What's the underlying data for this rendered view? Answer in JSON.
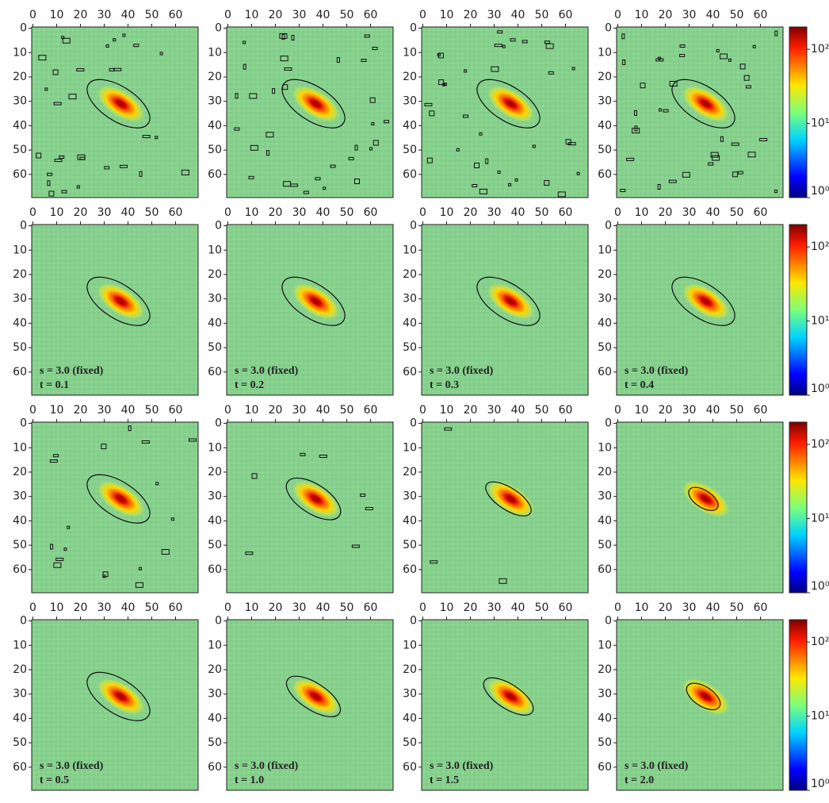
{
  "chart_data": [
    {
      "type": "heatmap",
      "xlim": [
        -0.5,
        69.5
      ],
      "ylim": [
        69.5,
        -0.5
      ],
      "xticks": [
        0,
        10,
        20,
        30,
        40,
        50,
        60
      ],
      "yticks": [
        0,
        10,
        20,
        30,
        40,
        50,
        60
      ]
    },
    {
      "type": "heatmap",
      "xlim": [
        -0.5,
        69.5
      ],
      "ylim": [
        69.5,
        -0.5
      ],
      "xticks": [
        0,
        10,
        20,
        30,
        40,
        50,
        60
      ],
      "yticks": [
        0,
        10,
        20,
        30,
        40,
        50,
        60
      ]
    },
    {
      "type": "heatmap",
      "xlim": [
        -0.5,
        69.5
      ],
      "ylim": [
        69.5,
        -0.5
      ],
      "xticks": [
        0,
        10,
        20,
        30,
        40,
        50,
        60
      ],
      "yticks": [
        0,
        10,
        20,
        30,
        40,
        50,
        60
      ]
    },
    {
      "type": "heatmap",
      "xlim": [
        -0.5,
        69.5
      ],
      "ylim": [
        69.5,
        -0.5
      ],
      "xticks": [
        0,
        10,
        20,
        30,
        40,
        50,
        60
      ],
      "yticks": [
        0,
        10,
        20,
        30,
        40,
        50,
        60
      ],
      "colorbar": {
        "scale": "log",
        "lim": [
          1,
          200
        ],
        "ticks": [
          {
            "value": 1,
            "label": "10⁰"
          },
          {
            "value": 10,
            "label": "10¹"
          },
          {
            "value": 100,
            "label": "10²"
          }
        ]
      }
    },
    {
      "type": "heatmap",
      "xlim": [
        -0.5,
        69.5
      ],
      "ylim": [
        69.5,
        -0.5
      ],
      "xticks": [
        0,
        10,
        20,
        30,
        40,
        50,
        60
      ],
      "yticks": [
        0,
        10,
        20,
        30,
        40,
        50,
        60
      ],
      "annotations": [
        "s = 3.0 (fixed)",
        "t = 0.1"
      ]
    },
    {
      "type": "heatmap",
      "xlim": [
        -0.5,
        69.5
      ],
      "ylim": [
        69.5,
        -0.5
      ],
      "xticks": [
        0,
        10,
        20,
        30,
        40,
        50,
        60
      ],
      "yticks": [
        0,
        10,
        20,
        30,
        40,
        50,
        60
      ],
      "annotations": [
        "s = 3.0 (fixed)",
        "t = 0.2"
      ]
    },
    {
      "type": "heatmap",
      "xlim": [
        -0.5,
        69.5
      ],
      "ylim": [
        69.5,
        -0.5
      ],
      "xticks": [
        0,
        10,
        20,
        30,
        40,
        50,
        60
      ],
      "yticks": [
        0,
        10,
        20,
        30,
        40,
        50,
        60
      ],
      "annotations": [
        "s = 3.0 (fixed)",
        "t = 0.3"
      ]
    },
    {
      "type": "heatmap",
      "xlim": [
        -0.5,
        69.5
      ],
      "ylim": [
        69.5,
        -0.5
      ],
      "xticks": [
        0,
        10,
        20,
        30,
        40,
        50,
        60
      ],
      "yticks": [
        0,
        10,
        20,
        30,
        40,
        50,
        60
      ],
      "annotations": [
        "s = 3.0 (fixed)",
        "t = 0.4"
      ],
      "colorbar": {
        "scale": "log",
        "lim": [
          1,
          200
        ],
        "ticks": [
          {
            "value": 1,
            "label": "10⁰"
          },
          {
            "value": 10,
            "label": "10¹"
          },
          {
            "value": 100,
            "label": "10²"
          }
        ]
      }
    },
    {
      "type": "heatmap",
      "xlim": [
        -0.5,
        69.5
      ],
      "ylim": [
        69.5,
        -0.5
      ],
      "xticks": [
        0,
        10,
        20,
        30,
        40,
        50,
        60
      ],
      "yticks": [
        0,
        10,
        20,
        30,
        40,
        50,
        60
      ]
    },
    {
      "type": "heatmap",
      "xlim": [
        -0.5,
        69.5
      ],
      "ylim": [
        69.5,
        -0.5
      ],
      "xticks": [
        0,
        10,
        20,
        30,
        40,
        50,
        60
      ],
      "yticks": [
        0,
        10,
        20,
        30,
        40,
        50,
        60
      ]
    },
    {
      "type": "heatmap",
      "xlim": [
        -0.5,
        69.5
      ],
      "ylim": [
        69.5,
        -0.5
      ],
      "xticks": [
        0,
        10,
        20,
        30,
        40,
        50,
        60
      ],
      "yticks": [
        0,
        10,
        20,
        30,
        40,
        50,
        60
      ]
    },
    {
      "type": "heatmap",
      "xlim": [
        -0.5,
        69.5
      ],
      "ylim": [
        69.5,
        -0.5
      ],
      "xticks": [
        0,
        10,
        20,
        30,
        40,
        50,
        60
      ],
      "yticks": [
        0,
        10,
        20,
        30,
        40,
        50,
        60
      ],
      "colorbar": {
        "scale": "log",
        "lim": [
          1,
          200
        ],
        "ticks": [
          {
            "value": 1,
            "label": "10⁰"
          },
          {
            "value": 10,
            "label": "10¹"
          },
          {
            "value": 100,
            "label": "10²"
          }
        ]
      }
    },
    {
      "type": "heatmap",
      "xlim": [
        -0.5,
        69.5
      ],
      "ylim": [
        69.5,
        -0.5
      ],
      "xticks": [
        0,
        10,
        20,
        30,
        40,
        50,
        60
      ],
      "yticks": [
        0,
        10,
        20,
        30,
        40,
        50,
        60
      ],
      "annotations": [
        "s = 3.0 (fixed)",
        "t = 0.5"
      ]
    },
    {
      "type": "heatmap",
      "xlim": [
        -0.5,
        69.5
      ],
      "ylim": [
        69.5,
        -0.5
      ],
      "xticks": [
        0,
        10,
        20,
        30,
        40,
        50,
        60
      ],
      "yticks": [
        0,
        10,
        20,
        30,
        40,
        50,
        60
      ],
      "annotations": [
        "s = 3.0 (fixed)",
        "t = 1.0"
      ]
    },
    {
      "type": "heatmap",
      "xlim": [
        -0.5,
        69.5
      ],
      "ylim": [
        69.5,
        -0.5
      ],
      "xticks": [
        0,
        10,
        20,
        30,
        40,
        50,
        60
      ],
      "yticks": [
        0,
        10,
        20,
        30,
        40,
        50,
        60
      ],
      "annotations": [
        "s = 3.0 (fixed)",
        "t = 1.5"
      ]
    },
    {
      "type": "heatmap",
      "xlim": [
        -0.5,
        69.5
      ],
      "ylim": [
        69.5,
        -0.5
      ],
      "xticks": [
        0,
        10,
        20,
        30,
        40,
        50,
        60
      ],
      "yticks": [
        0,
        10,
        20,
        30,
        40,
        50,
        60
      ],
      "annotations": [
        "s = 3.0 (fixed)",
        "t = 2.0"
      ],
      "colorbar": {
        "scale": "log",
        "lim": [
          1,
          200
        ],
        "ticks": [
          {
            "value": 1,
            "label": "10⁰"
          },
          {
            "value": 10,
            "label": "10¹"
          },
          {
            "value": 100,
            "label": "10²"
          }
        ]
      }
    }
  ]
}
